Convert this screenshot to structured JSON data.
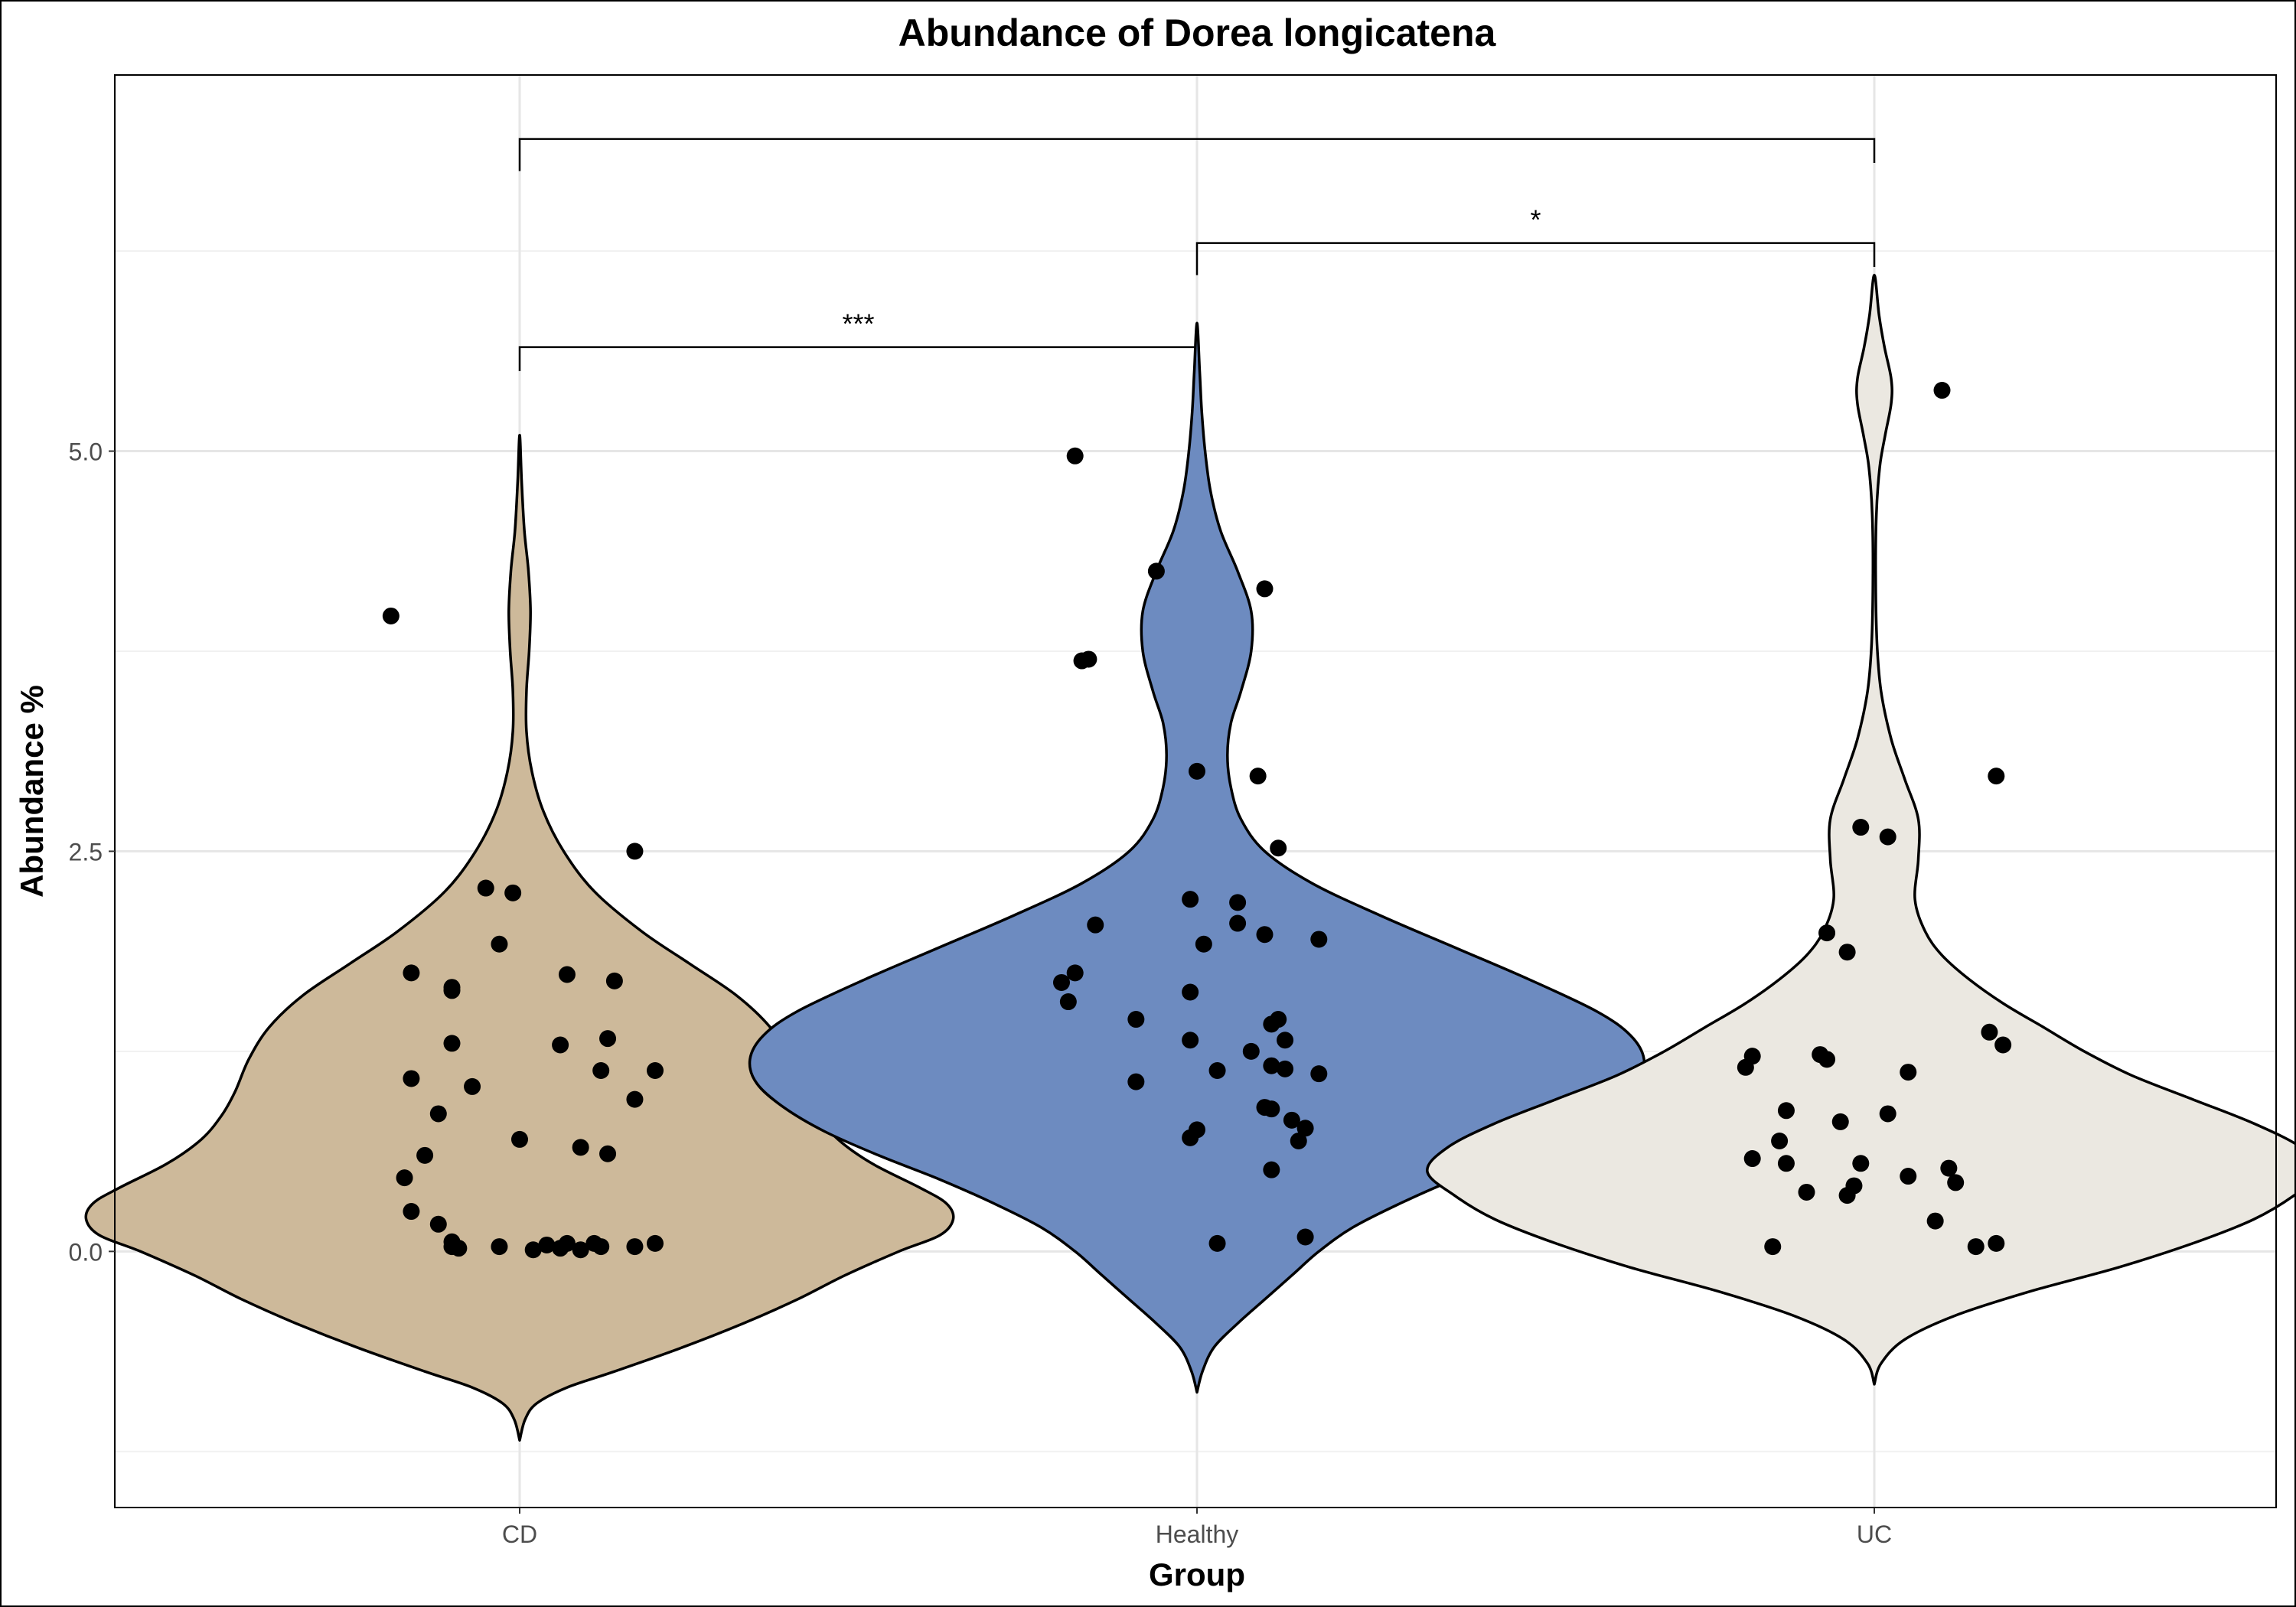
{
  "chart_data": {
    "type": "violin",
    "title": "Abundance of Dorea longicatena",
    "xlabel": "Group",
    "ylabel": "Abundance %",
    "categories": [
      "CD",
      "Healthy",
      "UC"
    ],
    "ylim": [
      -1.6,
      7.35
    ],
    "y_ticks": [
      0.0,
      2.5,
      5.0
    ],
    "y_tick_labels": [
      "0.0",
      "2.5",
      "5.0"
    ],
    "grid": true,
    "legend": "none",
    "colors": {
      "CD": "#cdb99a",
      "Healthy": "#6d8bc0",
      "UC": "#ebe8e1"
    },
    "violins": [
      {
        "group": "CD",
        "profile": [
          [
            -1.18,
            0.0
          ],
          [
            -1.05,
            0.008
          ],
          [
            -0.95,
            0.025
          ],
          [
            -0.85,
            0.07
          ],
          [
            -0.75,
            0.14
          ],
          [
            -0.6,
            0.24
          ],
          [
            -0.45,
            0.33
          ],
          [
            -0.3,
            0.41
          ],
          [
            -0.15,
            0.48
          ],
          [
            0.0,
            0.56
          ],
          [
            0.1,
            0.62
          ],
          [
            0.2,
            0.64
          ],
          [
            0.3,
            0.63
          ],
          [
            0.4,
            0.59
          ],
          [
            0.55,
            0.52
          ],
          [
            0.7,
            0.47
          ],
          [
            0.85,
            0.44
          ],
          [
            1.0,
            0.42
          ],
          [
            1.2,
            0.4
          ],
          [
            1.4,
            0.37
          ],
          [
            1.6,
            0.32
          ],
          [
            1.8,
            0.25
          ],
          [
            2.0,
            0.18
          ],
          [
            2.25,
            0.11
          ],
          [
            2.5,
            0.065
          ],
          [
            2.75,
            0.035
          ],
          [
            3.0,
            0.018
          ],
          [
            3.25,
            0.01
          ],
          [
            3.5,
            0.01
          ],
          [
            3.75,
            0.014
          ],
          [
            4.0,
            0.016
          ],
          [
            4.25,
            0.013
          ],
          [
            4.5,
            0.007
          ],
          [
            4.8,
            0.003
          ],
          [
            5.1,
            0.0
          ]
        ]
      },
      {
        "group": "Healthy",
        "profile": [
          [
            -0.88,
            0.0
          ],
          [
            -0.75,
            0.008
          ],
          [
            -0.6,
            0.025
          ],
          [
            -0.45,
            0.06
          ],
          [
            -0.3,
            0.1
          ],
          [
            -0.15,
            0.14
          ],
          [
            0.0,
            0.18
          ],
          [
            0.15,
            0.23
          ],
          [
            0.3,
            0.3
          ],
          [
            0.45,
            0.38
          ],
          [
            0.6,
            0.47
          ],
          [
            0.75,
            0.55
          ],
          [
            0.9,
            0.61
          ],
          [
            1.05,
            0.65
          ],
          [
            1.2,
            0.66
          ],
          [
            1.35,
            0.64
          ],
          [
            1.5,
            0.59
          ],
          [
            1.7,
            0.49
          ],
          [
            1.9,
            0.38
          ],
          [
            2.1,
            0.27
          ],
          [
            2.3,
            0.17
          ],
          [
            2.5,
            0.1
          ],
          [
            2.7,
            0.065
          ],
          [
            2.9,
            0.05
          ],
          [
            3.1,
            0.045
          ],
          [
            3.3,
            0.05
          ],
          [
            3.5,
            0.065
          ],
          [
            3.75,
            0.08
          ],
          [
            4.0,
            0.08
          ],
          [
            4.25,
            0.06
          ],
          [
            4.5,
            0.035
          ],
          [
            4.75,
            0.02
          ],
          [
            5.0,
            0.012
          ],
          [
            5.25,
            0.007
          ],
          [
            5.5,
            0.004
          ],
          [
            5.8,
            0.0
          ]
        ]
      },
      {
        "group": "UC",
        "profile": [
          [
            -0.83,
            0.0
          ],
          [
            -0.7,
            0.01
          ],
          [
            -0.55,
            0.045
          ],
          [
            -0.4,
            0.12
          ],
          [
            -0.25,
            0.23
          ],
          [
            -0.1,
            0.36
          ],
          [
            0.05,
            0.47
          ],
          [
            0.2,
            0.56
          ],
          [
            0.35,
            0.62
          ],
          [
            0.5,
            0.66
          ],
          [
            0.65,
            0.63
          ],
          [
            0.8,
            0.56
          ],
          [
            0.95,
            0.47
          ],
          [
            1.1,
            0.38
          ],
          [
            1.25,
            0.31
          ],
          [
            1.4,
            0.25
          ],
          [
            1.55,
            0.19
          ],
          [
            1.7,
            0.14
          ],
          [
            1.85,
            0.1
          ],
          [
            2.0,
            0.075
          ],
          [
            2.2,
            0.06
          ],
          [
            2.45,
            0.065
          ],
          [
            2.7,
            0.065
          ],
          [
            2.95,
            0.045
          ],
          [
            3.2,
            0.025
          ],
          [
            3.5,
            0.01
          ],
          [
            3.8,
            0.004
          ],
          [
            4.2,
            0.002
          ],
          [
            4.6,
            0.003
          ],
          [
            4.9,
            0.008
          ],
          [
            5.1,
            0.016
          ],
          [
            5.3,
            0.025
          ],
          [
            5.45,
            0.025
          ],
          [
            5.65,
            0.015
          ],
          [
            5.85,
            0.007
          ],
          [
            6.1,
            0.0
          ]
        ]
      }
    ],
    "points": {
      "CD": [
        [
          -0.19,
          3.97
        ],
        [
          0.17,
          2.5
        ],
        [
          -0.05,
          2.27
        ],
        [
          -0.01,
          2.24
        ],
        [
          -0.03,
          1.92
        ],
        [
          -0.16,
          1.74
        ],
        [
          0.07,
          1.73
        ],
        [
          -0.1,
          1.65
        ],
        [
          -0.1,
          1.63
        ],
        [
          0.14,
          1.69
        ],
        [
          -0.1,
          1.3
        ],
        [
          0.13,
          1.33
        ],
        [
          0.06,
          1.29
        ],
        [
          0.12,
          1.13
        ],
        [
          0.2,
          1.13
        ],
        [
          -0.16,
          1.08
        ],
        [
          -0.07,
          1.03
        ],
        [
          0.17,
          0.95
        ],
        [
          -0.12,
          0.86
        ],
        [
          0.0,
          0.7
        ],
        [
          0.09,
          0.65
        ],
        [
          0.13,
          0.61
        ],
        [
          -0.14,
          0.6
        ],
        [
          -0.17,
          0.46
        ],
        [
          -0.16,
          0.25
        ],
        [
          -0.12,
          0.17
        ],
        [
          -0.1,
          0.06
        ],
        [
          -0.1,
          0.03
        ],
        [
          -0.09,
          0.02
        ],
        [
          -0.03,
          0.03
        ],
        [
          0.02,
          0.01
        ],
        [
          0.04,
          0.04
        ],
        [
          0.06,
          0.02
        ],
        [
          0.07,
          0.05
        ],
        [
          0.09,
          0.01
        ],
        [
          0.11,
          0.05
        ],
        [
          0.12,
          0.03
        ],
        [
          0.17,
          0.03
        ],
        [
          0.2,
          0.05
        ]
      ],
      "Healthy": [
        [
          -0.18,
          4.97
        ],
        [
          -0.06,
          4.25
        ],
        [
          0.1,
          4.14
        ],
        [
          -0.17,
          3.69
        ],
        [
          -0.16,
          3.7
        ],
        [
          0.0,
          3.0
        ],
        [
          0.09,
          2.97
        ],
        [
          0.12,
          2.52
        ],
        [
          -0.01,
          2.2
        ],
        [
          0.06,
          2.18
        ],
        [
          -0.15,
          2.04
        ],
        [
          0.06,
          2.05
        ],
        [
          0.1,
          1.98
        ],
        [
          0.18,
          1.95
        ],
        [
          0.01,
          1.92
        ],
        [
          -0.18,
          1.74
        ],
        [
          -0.2,
          1.68
        ],
        [
          -0.19,
          1.56
        ],
        [
          -0.01,
          1.62
        ],
        [
          -0.09,
          1.45
        ],
        [
          0.12,
          1.45
        ],
        [
          0.11,
          1.42
        ],
        [
          -0.01,
          1.32
        ],
        [
          0.13,
          1.32
        ],
        [
          0.08,
          1.25
        ],
        [
          0.11,
          1.16
        ],
        [
          0.13,
          1.14
        ],
        [
          0.03,
          1.13
        ],
        [
          0.18,
          1.11
        ],
        [
          -0.09,
          1.06
        ],
        [
          0.1,
          0.9
        ],
        [
          0.11,
          0.89
        ],
        [
          0.14,
          0.82
        ],
        [
          0.16,
          0.77
        ],
        [
          0.0,
          0.76
        ],
        [
          -0.01,
          0.71
        ],
        [
          0.15,
          0.69
        ],
        [
          0.11,
          0.51
        ],
        [
          0.03,
          0.05
        ],
        [
          0.16,
          0.09
        ]
      ],
      "UC": [
        [
          0.1,
          5.38
        ],
        [
          0.18,
          2.97
        ],
        [
          -0.02,
          2.65
        ],
        [
          0.02,
          2.59
        ],
        [
          -0.07,
          1.99
        ],
        [
          -0.04,
          1.87
        ],
        [
          0.17,
          1.37
        ],
        [
          0.19,
          1.29
        ],
        [
          -0.18,
          1.22
        ],
        [
          -0.08,
          1.23
        ],
        [
          -0.07,
          1.2
        ],
        [
          -0.19,
          1.15
        ],
        [
          0.05,
          1.12
        ],
        [
          -0.13,
          0.88
        ],
        [
          0.02,
          0.86
        ],
        [
          -0.05,
          0.81
        ],
        [
          -0.14,
          0.69
        ],
        [
          -0.18,
          0.58
        ],
        [
          -0.13,
          0.55
        ],
        [
          -0.02,
          0.55
        ],
        [
          0.05,
          0.47
        ],
        [
          0.11,
          0.52
        ],
        [
          0.12,
          0.43
        ],
        [
          -0.03,
          0.41
        ],
        [
          -0.1,
          0.37
        ],
        [
          -0.04,
          0.35
        ],
        [
          0.09,
          0.19
        ],
        [
          -0.15,
          0.03
        ],
        [
          0.15,
          0.03
        ],
        [
          0.18,
          0.05
        ]
      ]
    },
    "significance": [
      {
        "from": "CD",
        "to": "Healthy",
        "y": 5.65,
        "tick_from": 5.5,
        "tick_to": 5.5,
        "label": "***"
      },
      {
        "from": "Healthy",
        "to": "UC",
        "y": 6.3,
        "tick_from": 6.1,
        "tick_to": 6.15,
        "label": "*"
      },
      {
        "from": "CD",
        "to": "UC",
        "y": 6.95,
        "tick_from": 6.75,
        "tick_to": 6.8,
        "label": ""
      }
    ]
  }
}
